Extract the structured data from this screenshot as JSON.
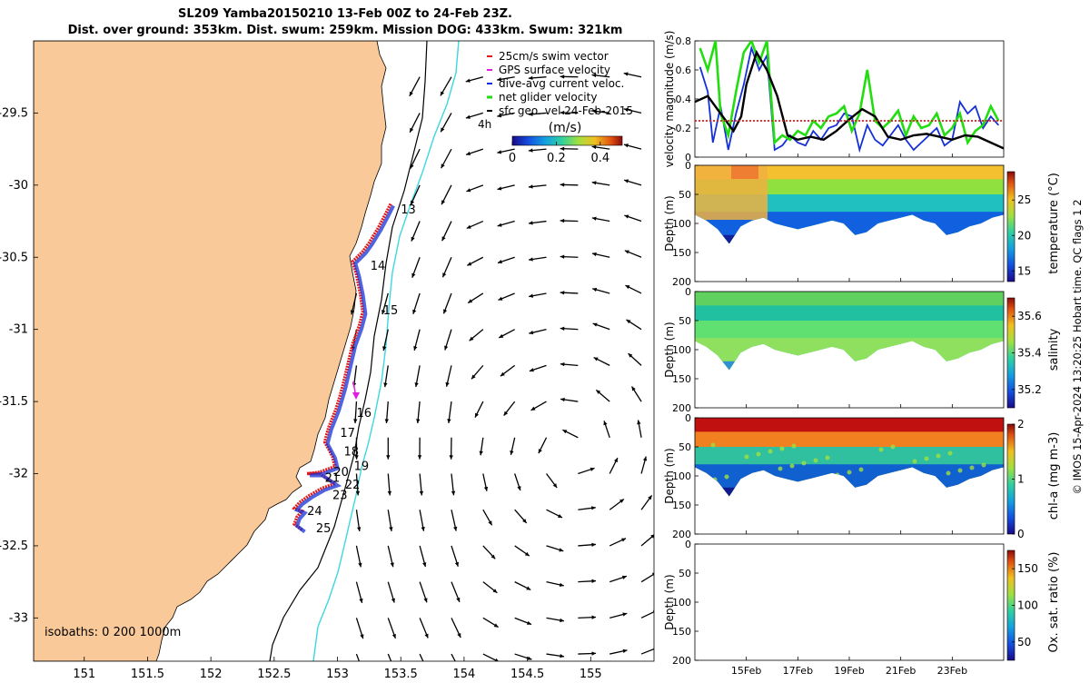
{
  "title_line1": "SL209 Yamba20150210 13-Feb 00Z to 24-Feb 23Z.",
  "title_line2": "Dist. over ground: 353km. Dist. swum: 259km. Mission DOG: 433km. Swum: 321km",
  "credit": "© IMOS 15-Apr-2024 13:20:25 Hobart time. QC flags 1  2",
  "colors": {
    "land": "#f9c999",
    "track": "#e21a1a",
    "dive": "#1530d6",
    "isobath200": "#000000",
    "isobath1000": "#3cd8e0",
    "gps": "#e01ee0",
    "net": "#22dd10",
    "sfc": "#000000"
  },
  "chart_data": [
    {
      "type": "map",
      "xlabel_ticks": [
        "151",
        "151.5",
        "152",
        "152.5",
        "153",
        "153.5",
        "154",
        "154.5",
        "155"
      ],
      "xlim": [
        150.6,
        155.5
      ],
      "ylabel_ticks": [
        "-29.5",
        "-30",
        "-30.5",
        "-31",
        "-31.5",
        "-32",
        "-32.5",
        "-33"
      ],
      "ylim": [
        -33.3,
        -29.0
      ],
      "legend": [
        "25cm/s swim vector",
        "GPS surface velocity",
        "dive-avg current veloc.",
        "net glider velocity",
        "sfc geo. vel 24-Feb-2015"
      ],
      "legend_suffix": "4h",
      "colorbar": {
        "label": "(m/s)",
        "ticks": [
          "0",
          "0.2",
          "0.4"
        ],
        "range": [
          0,
          0.5
        ]
      },
      "isobaths_label": "isobaths: 0   200  1000m",
      "track_lonlat": [
        [
          153.42,
          -30.13
        ],
        [
          153.38,
          -30.2
        ],
        [
          153.32,
          -30.3
        ],
        [
          153.25,
          -30.4
        ],
        [
          153.2,
          -30.46
        ],
        [
          153.12,
          -30.53
        ],
        [
          153.15,
          -30.62
        ],
        [
          153.18,
          -30.75
        ],
        [
          153.2,
          -30.88
        ],
        [
          153.17,
          -30.98
        ],
        [
          153.12,
          -31.1
        ],
        [
          153.08,
          -31.25
        ],
        [
          153.04,
          -31.4
        ],
        [
          152.99,
          -31.55
        ],
        [
          152.93,
          -31.68
        ],
        [
          152.9,
          -31.78
        ],
        [
          152.96,
          -31.88
        ],
        [
          152.98,
          -31.95
        ],
        [
          152.86,
          -31.99
        ],
        [
          152.76,
          -32.0
        ],
        [
          152.86,
          -32.0
        ],
        [
          152.98,
          -32.07
        ],
        [
          152.88,
          -32.1
        ],
        [
          152.78,
          -32.15
        ],
        [
          152.7,
          -32.2
        ],
        [
          152.66,
          -32.24
        ],
        [
          152.72,
          -32.26
        ],
        [
          152.68,
          -32.3
        ],
        [
          152.66,
          -32.35
        ],
        [
          152.72,
          -32.39
        ]
      ],
      "day_labels": [
        {
          "text": "13",
          "lon": 153.5,
          "lat": -30.17
        },
        {
          "text": "14",
          "lon": 153.26,
          "lat": -30.56
        },
        {
          "text": "15",
          "lon": 153.36,
          "lat": -30.87
        },
        {
          "text": "16",
          "lon": 153.15,
          "lat": -31.58
        },
        {
          "text": "17",
          "lon": 153.02,
          "lat": -31.72
        },
        {
          "text": "18",
          "lon": 153.05,
          "lat": -31.85
        },
        {
          "text": "19",
          "lon": 153.13,
          "lat": -31.95
        },
        {
          "text": "20",
          "lon": 152.97,
          "lat": -31.99
        },
        {
          "text": "21",
          "lon": 152.9,
          "lat": -32.03
        },
        {
          "text": "22",
          "lon": 153.06,
          "lat": -32.08
        },
        {
          "text": "23",
          "lon": 152.96,
          "lat": -32.15
        },
        {
          "text": "24",
          "lon": 152.76,
          "lat": -32.26
        },
        {
          "text": "25",
          "lon": 152.83,
          "lat": -32.38
        }
      ]
    },
    {
      "type": "line",
      "ylabel": "velocity magnitude (m/s)",
      "ylim": [
        0,
        0.8
      ],
      "yticks": [
        "0",
        "0.2",
        "0.4",
        "0.6",
        "0.8"
      ],
      "xlim_days": [
        13,
        25
      ],
      "series": [
        {
          "name": "dive-avg current veloc.",
          "color": "#1530d6",
          "x": [
            13.2,
            13.5,
            13.7,
            14,
            14.3,
            14.6,
            14.9,
            15.2,
            15.5,
            15.8,
            16.1,
            16.4,
            16.7,
            17,
            17.3,
            17.6,
            17.9,
            18.2,
            18.5,
            18.8,
            19.1,
            19.4,
            19.7,
            20,
            20.3,
            20.6,
            20.9,
            21.2,
            21.5,
            21.8,
            22.1,
            22.4,
            22.7,
            23,
            23.3,
            23.6,
            23.9,
            24.2,
            24.5,
            24.8
          ],
          "y": [
            0.62,
            0.45,
            0.1,
            0.35,
            0.05,
            0.3,
            0.5,
            0.75,
            0.6,
            0.7,
            0.05,
            0.08,
            0.15,
            0.1,
            0.08,
            0.18,
            0.12,
            0.2,
            0.22,
            0.3,
            0.28,
            0.05,
            0.22,
            0.12,
            0.08,
            0.15,
            0.22,
            0.12,
            0.05,
            0.1,
            0.15,
            0.2,
            0.08,
            0.12,
            0.38,
            0.3,
            0.35,
            0.2,
            0.28,
            0.22
          ]
        },
        {
          "name": "net glider velocity",
          "color": "#22dd10",
          "x": [
            13.2,
            13.5,
            13.8,
            14,
            14.3,
            14.6,
            14.9,
            15.2,
            15.5,
            15.8,
            16.1,
            16.4,
            16.7,
            17,
            17.3,
            17.6,
            17.9,
            18.2,
            18.5,
            18.8,
            19.1,
            19.4,
            19.7,
            20,
            20.3,
            20.6,
            20.9,
            21.2,
            21.5,
            21.8,
            22.1,
            22.4,
            22.7,
            23,
            23.3,
            23.6,
            23.9,
            24.2,
            24.5,
            24.8
          ],
          "y": [
            0.75,
            0.6,
            0.8,
            0.3,
            0.15,
            0.45,
            0.72,
            0.8,
            0.65,
            0.8,
            0.1,
            0.15,
            0.12,
            0.18,
            0.15,
            0.25,
            0.2,
            0.28,
            0.3,
            0.35,
            0.18,
            0.3,
            0.6,
            0.25,
            0.2,
            0.25,
            0.32,
            0.15,
            0.28,
            0.2,
            0.22,
            0.3,
            0.15,
            0.2,
            0.3,
            0.1,
            0.18,
            0.22,
            0.35,
            0.25
          ]
        },
        {
          "name": "sfc geo. vel",
          "color": "#000000",
          "x": [
            13,
            13.5,
            14,
            14.5,
            14.8,
            15,
            15.4,
            15.8,
            16.2,
            16.6,
            17,
            17.5,
            18,
            18.5,
            19,
            19.5,
            20,
            20.5,
            21,
            21.5,
            22,
            22.5,
            23,
            23.5,
            24,
            24.5,
            25
          ],
          "y": [
            0.38,
            0.42,
            0.3,
            0.18,
            0.28,
            0.5,
            0.72,
            0.6,
            0.42,
            0.15,
            0.12,
            0.14,
            0.12,
            0.18,
            0.26,
            0.33,
            0.28,
            0.14,
            0.12,
            0.15,
            0.16,
            0.14,
            0.12,
            0.15,
            0.14,
            0.1,
            0.06
          ]
        },
        {
          "name": "25cm/s swim vector",
          "color": "#e21a1a",
          "x": [
            13,
            25
          ],
          "y": [
            0.25,
            0.25
          ]
        }
      ]
    },
    {
      "type": "heatmap",
      "ylabel": "Depth (m)",
      "cbar_label": "temperature (°C)",
      "yticks": [
        "0",
        "50",
        "100",
        "150",
        "200"
      ],
      "ylim": [
        0,
        200
      ],
      "cbar_ticks": [
        "15",
        "20",
        "25"
      ],
      "cbar_range": [
        13.5,
        29
      ],
      "dive_depth": [
        85,
        95,
        110,
        135,
        105,
        95,
        90,
        100,
        105,
        110,
        105,
        100,
        95,
        100,
        120,
        115,
        100,
        95,
        90,
        85,
        95,
        100,
        120,
        115,
        105,
        100,
        90,
        85
      ]
    },
    {
      "type": "heatmap",
      "ylabel": "Depth (m)",
      "cbar_label": "salinity",
      "yticks": [
        "0",
        "50",
        "100",
        "150",
        "200"
      ],
      "ylim": [
        0,
        200
      ],
      "cbar_ticks": [
        "35.2",
        "35.4",
        "35.6"
      ],
      "cbar_range": [
        35.1,
        35.7
      ]
    },
    {
      "type": "heatmap",
      "ylabel": "Depth (m)",
      "cbar_label": "chl-a (mg m-3)",
      "yticks": [
        "0",
        "50",
        "100",
        "150",
        "200"
      ],
      "ylim": [
        0,
        200
      ],
      "cbar_ticks": [
        "0",
        "1",
        "2"
      ],
      "cbar_range": [
        0,
        2
      ]
    },
    {
      "type": "heatmap",
      "ylabel": "Depth (m)",
      "cbar_label": "Ox. sat. ratio (%)",
      "yticks": [
        "0",
        "50",
        "100",
        "150",
        "200"
      ],
      "ylim": [
        0,
        200
      ],
      "cbar_ticks": [
        "50",
        "100",
        "150"
      ],
      "cbar_range": [
        25,
        175
      ],
      "xticks": [
        "15Feb",
        "17Feb",
        "19Feb",
        "21Feb",
        "23Feb"
      ],
      "xtick_days": [
        15,
        17,
        19,
        21,
        23
      ]
    }
  ]
}
